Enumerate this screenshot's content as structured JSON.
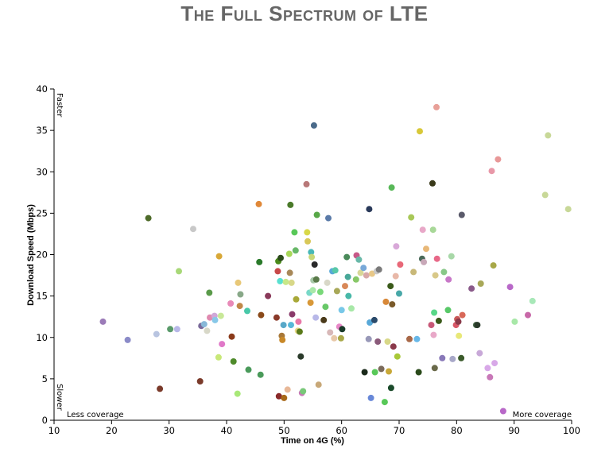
{
  "chart_data": {
    "type": "scatter",
    "title": "The Full Spectrum of LTE",
    "xlabel": "Time on 4G (%)",
    "ylabel": "Download Speed (Mbps)",
    "xlim": [
      10,
      100
    ],
    "ylim": [
      0,
      40
    ],
    "xticks": [
      10,
      20,
      30,
      40,
      50,
      60,
      70,
      80,
      90,
      100
    ],
    "yticks": [
      0,
      5,
      10,
      15,
      20,
      25,
      30,
      35,
      40
    ],
    "grid": false,
    "annotations": {
      "y_high": "Faster",
      "y_low": "Slower",
      "x_low": "Less coverage",
      "x_high": "More coverage"
    },
    "points": [
      {
        "x": 18.5,
        "y": 11.9,
        "color": "#9b7bb8"
      },
      {
        "x": 22.8,
        "y": 9.7,
        "color": "#8b8bc8"
      },
      {
        "x": 26.4,
        "y": 24.4,
        "color": "#4e6b2a"
      },
      {
        "x": 27.8,
        "y": 10.4,
        "color": "#b8c4e0"
      },
      {
        "x": 28.4,
        "y": 3.8,
        "color": "#7a3a2a"
      },
      {
        "x": 30.2,
        "y": 11.0,
        "color": "#5a9a6a"
      },
      {
        "x": 31.4,
        "y": 11.0,
        "color": "#b8b8e8"
      },
      {
        "x": 31.7,
        "y": 18.0,
        "color": "#a8d878"
      },
      {
        "x": 34.2,
        "y": 23.1,
        "color": "#c8c8c8"
      },
      {
        "x": 35.4,
        "y": 4.7,
        "color": "#7a3a2a"
      },
      {
        "x": 35.6,
        "y": 11.4,
        "color": "#7a6a9a"
      },
      {
        "x": 36.1,
        "y": 11.6,
        "color": "#88b8d8"
      },
      {
        "x": 36.6,
        "y": 10.8,
        "color": "#d8d8c8"
      },
      {
        "x": 37.0,
        "y": 15.4,
        "color": "#5a9a4a"
      },
      {
        "x": 37.1,
        "y": 12.4,
        "color": "#e08ab0"
      },
      {
        "x": 37.9,
        "y": 12.6,
        "color": "#d0a8d8"
      },
      {
        "x": 38.0,
        "y": 12.1,
        "color": "#88c8e8"
      },
      {
        "x": 38.6,
        "y": 7.6,
        "color": "#c8e878"
      },
      {
        "x": 38.7,
        "y": 19.8,
        "color": "#d8a838"
      },
      {
        "x": 39.0,
        "y": 12.6,
        "color": "#c8e898"
      },
      {
        "x": 39.2,
        "y": 9.2,
        "color": "#e078c8"
      },
      {
        "x": 40.7,
        "y": 14.1,
        "color": "#e88ab8"
      },
      {
        "x": 40.9,
        "y": 10.1,
        "color": "#8a3a1a"
      },
      {
        "x": 41.2,
        "y": 7.1,
        "color": "#4e8a2a"
      },
      {
        "x": 41.9,
        "y": 3.2,
        "color": "#a8e878"
      },
      {
        "x": 42.0,
        "y": 16.6,
        "color": "#e8c878"
      },
      {
        "x": 42.3,
        "y": 13.8,
        "color": "#c08848"
      },
      {
        "x": 42.4,
        "y": 15.2,
        "color": "#88a888"
      },
      {
        "x": 43.6,
        "y": 13.2,
        "color": "#48c8a8"
      },
      {
        "x": 43.8,
        "y": 6.1,
        "color": "#4a9a5a"
      },
      {
        "x": 45.6,
        "y": 26.1,
        "color": "#e08838"
      },
      {
        "x": 45.7,
        "y": 19.1,
        "color": "#2a7a2a"
      },
      {
        "x": 45.9,
        "y": 5.5,
        "color": "#4a9a5a"
      },
      {
        "x": 46.0,
        "y": 12.7,
        "color": "#8a4a1a"
      },
      {
        "x": 47.2,
        "y": 15.0,
        "color": "#8a3a5a"
      },
      {
        "x": 48.7,
        "y": 12.4,
        "color": "#8a3a2a"
      },
      {
        "x": 48.9,
        "y": 18.0,
        "color": "#c84848"
      },
      {
        "x": 49.0,
        "y": 19.2,
        "color": "#4a8a1a"
      },
      {
        "x": 49.1,
        "y": 2.9,
        "color": "#8a2a2a"
      },
      {
        "x": 49.3,
        "y": 16.8,
        "color": "#58e0d0"
      },
      {
        "x": 49.4,
        "y": 19.6,
        "color": "#2a4a1a"
      },
      {
        "x": 49.6,
        "y": 10.2,
        "color": "#a87838"
      },
      {
        "x": 49.7,
        "y": 9.7,
        "color": "#c88828"
      },
      {
        "x": 49.9,
        "y": 11.5,
        "color": "#58a8c8"
      },
      {
        "x": 50.0,
        "y": 2.7,
        "color": "#a86818"
      },
      {
        "x": 50.3,
        "y": 16.7,
        "color": "#c8e888"
      },
      {
        "x": 50.6,
        "y": 3.7,
        "color": "#e8b898"
      },
      {
        "x": 50.9,
        "y": 20.1,
        "color": "#a8d858"
      },
      {
        "x": 51.0,
        "y": 17.8,
        "color": "#a88858"
      },
      {
        "x": 51.1,
        "y": 26.0,
        "color": "#4a7a2a"
      },
      {
        "x": 51.2,
        "y": 11.5,
        "color": "#58b8d8"
      },
      {
        "x": 51.3,
        "y": 16.6,
        "color": "#d8d888"
      },
      {
        "x": 51.4,
        "y": 12.8,
        "color": "#8a3a6a"
      },
      {
        "x": 51.8,
        "y": 22.7,
        "color": "#58c858"
      },
      {
        "x": 52.0,
        "y": 20.5,
        "color": "#68b868"
      },
      {
        "x": 52.1,
        "y": 14.6,
        "color": "#a8a838"
      },
      {
        "x": 52.4,
        "y": 10.8,
        "color": "#e8d888"
      },
      {
        "x": 52.5,
        "y": 11.9,
        "color": "#e878a8"
      },
      {
        "x": 52.7,
        "y": 10.7,
        "color": "#5a7a1a"
      },
      {
        "x": 52.9,
        "y": 7.7,
        "color": "#2a3a2a"
      },
      {
        "x": 53.1,
        "y": 3.3,
        "color": "#c878b8"
      },
      {
        "x": 53.3,
        "y": 3.5,
        "color": "#78c878"
      },
      {
        "x": 53.9,
        "y": 28.5,
        "color": "#b87878"
      },
      {
        "x": 54.0,
        "y": 22.7,
        "color": "#d8d848"
      },
      {
        "x": 54.1,
        "y": 21.6,
        "color": "#d8c858"
      },
      {
        "x": 54.4,
        "y": 15.4,
        "color": "#78d8c8"
      },
      {
        "x": 54.6,
        "y": 14.2,
        "color": "#d89838"
      },
      {
        "x": 54.7,
        "y": 20.3,
        "color": "#48b8b8"
      },
      {
        "x": 54.8,
        "y": 19.7,
        "color": "#c8d878"
      },
      {
        "x": 55.0,
        "y": 15.7,
        "color": "#a8e8a8"
      },
      {
        "x": 55.1,
        "y": 16.9,
        "color": "#a8c8a8"
      },
      {
        "x": 55.2,
        "y": 35.6,
        "color": "#4a6a8a"
      },
      {
        "x": 55.3,
        "y": 18.8,
        "color": "#2a2a2a"
      },
      {
        "x": 55.5,
        "y": 12.4,
        "color": "#b8b8e8"
      },
      {
        "x": 55.6,
        "y": 17.0,
        "color": "#5a7a4a"
      },
      {
        "x": 55.7,
        "y": 24.8,
        "color": "#58a848"
      },
      {
        "x": 56.0,
        "y": 4.3,
        "color": "#c8a878"
      },
      {
        "x": 56.3,
        "y": 15.5,
        "color": "#78d878"
      },
      {
        "x": 56.9,
        "y": 12.1,
        "color": "#4a3a1a"
      },
      {
        "x": 57.2,
        "y": 13.7,
        "color": "#68c868"
      },
      {
        "x": 57.5,
        "y": 16.6,
        "color": "#d8d8c8"
      },
      {
        "x": 57.7,
        "y": 24.4,
        "color": "#5a7aa8"
      },
      {
        "x": 58.0,
        "y": 10.6,
        "color": "#d8b8b8"
      },
      {
        "x": 58.4,
        "y": 18.0,
        "color": "#58a8d8"
      },
      {
        "x": 58.7,
        "y": 9.9,
        "color": "#e8c8a8"
      },
      {
        "x": 58.9,
        "y": 18.1,
        "color": "#58c8a8"
      },
      {
        "x": 59.2,
        "y": 15.6,
        "color": "#a8a858"
      },
      {
        "x": 59.6,
        "y": 11.3,
        "color": "#e888c8"
      },
      {
        "x": 59.9,
        "y": 9.9,
        "color": "#a8a848"
      },
      {
        "x": 60.0,
        "y": 13.3,
        "color": "#78c8e8"
      },
      {
        "x": 60.1,
        "y": 11.0,
        "color": "#1a3a2a"
      },
      {
        "x": 60.6,
        "y": 16.2,
        "color": "#d88858"
      },
      {
        "x": 60.9,
        "y": 19.7,
        "color": "#4a8a5a"
      },
      {
        "x": 61.1,
        "y": 17.3,
        "color": "#48a898"
      },
      {
        "x": 61.2,
        "y": 15.0,
        "color": "#48b8a8"
      },
      {
        "x": 61.7,
        "y": 13.5,
        "color": "#a8e8a8"
      },
      {
        "x": 62.5,
        "y": 17.0,
        "color": "#88c868"
      },
      {
        "x": 62.6,
        "y": 19.9,
        "color": "#c85888"
      },
      {
        "x": 63.0,
        "y": 19.4,
        "color": "#68b8a8"
      },
      {
        "x": 63.3,
        "y": 17.8,
        "color": "#d8d898"
      },
      {
        "x": 63.8,
        "y": 18.4,
        "color": "#78a8d8"
      },
      {
        "x": 64.0,
        "y": 5.8,
        "color": "#1a2a1a"
      },
      {
        "x": 64.3,
        "y": 17.5,
        "color": "#d8a8a8"
      },
      {
        "x": 64.7,
        "y": 9.8,
        "color": "#9898b8"
      },
      {
        "x": 64.8,
        "y": 25.5,
        "color": "#2a3a5a"
      },
      {
        "x": 64.9,
        "y": 11.8,
        "color": "#58a8d8"
      },
      {
        "x": 65.1,
        "y": 2.7,
        "color": "#6888d8"
      },
      {
        "x": 65.3,
        "y": 17.7,
        "color": "#e8c888"
      },
      {
        "x": 65.7,
        "y": 12.1,
        "color": "#2a4a6a"
      },
      {
        "x": 65.8,
        "y": 5.8,
        "color": "#58c858"
      },
      {
        "x": 66.1,
        "y": 18.0,
        "color": "#c8c8c8"
      },
      {
        "x": 66.3,
        "y": 9.5,
        "color": "#8a5a7a"
      },
      {
        "x": 66.5,
        "y": 18.2,
        "color": "#7a7a7a"
      },
      {
        "x": 66.9,
        "y": 6.2,
        "color": "#7a6a5a"
      },
      {
        "x": 67.5,
        "y": 2.2,
        "color": "#58c858"
      },
      {
        "x": 67.7,
        "y": 14.3,
        "color": "#d88838"
      },
      {
        "x": 68.0,
        "y": 9.5,
        "color": "#d8d888"
      },
      {
        "x": 68.2,
        "y": 5.9,
        "color": "#c8a838"
      },
      {
        "x": 68.5,
        "y": 16.2,
        "color": "#3a5a1a"
      },
      {
        "x": 68.6,
        "y": 3.9,
        "color": "#1a4a2a"
      },
      {
        "x": 68.7,
        "y": 28.1,
        "color": "#58b858"
      },
      {
        "x": 68.8,
        "y": 14.0,
        "color": "#7a5a2a"
      },
      {
        "x": 69.0,
        "y": 8.9,
        "color": "#8a3a4a"
      },
      {
        "x": 69.4,
        "y": 17.4,
        "color": "#e8b8a8"
      },
      {
        "x": 69.5,
        "y": 21.0,
        "color": "#d8a8d8"
      },
      {
        "x": 69.7,
        "y": 7.7,
        "color": "#a8c838"
      },
      {
        "x": 70.0,
        "y": 15.3,
        "color": "#48a8a8"
      },
      {
        "x": 70.2,
        "y": 18.8,
        "color": "#e86878"
      },
      {
        "x": 71.8,
        "y": 9.8,
        "color": "#a86848"
      },
      {
        "x": 72.1,
        "y": 24.5,
        "color": "#a8c858"
      },
      {
        "x": 72.5,
        "y": 17.9,
        "color": "#c8b878"
      },
      {
        "x": 73.1,
        "y": 9.8,
        "color": "#68b8e8"
      },
      {
        "x": 73.4,
        "y": 5.8,
        "color": "#2a4a1a"
      },
      {
        "x": 73.6,
        "y": 34.9,
        "color": "#d8c838"
      },
      {
        "x": 74.0,
        "y": 19.5,
        "color": "#4a6a5a"
      },
      {
        "x": 74.1,
        "y": 23.0,
        "color": "#e8a8c8"
      },
      {
        "x": 74.3,
        "y": 19.1,
        "color": "#c8a8b8"
      },
      {
        "x": 74.7,
        "y": 20.7,
        "color": "#e8b878"
      },
      {
        "x": 75.6,
        "y": 11.5,
        "color": "#c85878"
      },
      {
        "x": 75.8,
        "y": 28.6,
        "color": "#3a3a1a"
      },
      {
        "x": 75.9,
        "y": 23.0,
        "color": "#a8d898"
      },
      {
        "x": 76.0,
        "y": 10.3,
        "color": "#e8a8c8"
      },
      {
        "x": 76.1,
        "y": 13.0,
        "color": "#58d888"
      },
      {
        "x": 76.2,
        "y": 6.3,
        "color": "#6a6a4a"
      },
      {
        "x": 76.3,
        "y": 17.5,
        "color": "#d8c888"
      },
      {
        "x": 76.5,
        "y": 37.8,
        "color": "#e8a098"
      },
      {
        "x": 76.6,
        "y": 19.5,
        "color": "#e86888"
      },
      {
        "x": 76.9,
        "y": 12.0,
        "color": "#3a5a1a"
      },
      {
        "x": 77.5,
        "y": 7.5,
        "color": "#8878b8"
      },
      {
        "x": 77.8,
        "y": 17.9,
        "color": "#88c888"
      },
      {
        "x": 78.5,
        "y": 13.3,
        "color": "#58c868"
      },
      {
        "x": 78.6,
        "y": 17.0,
        "color": "#c878c8"
      },
      {
        "x": 79.1,
        "y": 19.8,
        "color": "#a8d8a8"
      },
      {
        "x": 79.3,
        "y": 7.4,
        "color": "#a8a8c8"
      },
      {
        "x": 79.9,
        "y": 11.5,
        "color": "#d85868"
      },
      {
        "x": 80.1,
        "y": 12.2,
        "color": "#c85858"
      },
      {
        "x": 80.3,
        "y": 11.9,
        "color": "#8a3a4a"
      },
      {
        "x": 80.4,
        "y": 10.2,
        "color": "#e8e878"
      },
      {
        "x": 80.8,
        "y": 7.5,
        "color": "#3a5a2a"
      },
      {
        "x": 80.9,
        "y": 24.8,
        "color": "#5a5a6a"
      },
      {
        "x": 81.0,
        "y": 12.7,
        "color": "#d86858"
      },
      {
        "x": 82.6,
        "y": 15.9,
        "color": "#8a5a8a"
      },
      {
        "x": 83.4,
        "y": 11.5,
        "color": "#4a6a4a"
      },
      {
        "x": 83.6,
        "y": 11.5,
        "color": "#2a3a2a"
      },
      {
        "x": 84.0,
        "y": 8.1,
        "color": "#c8a8d8"
      },
      {
        "x": 84.2,
        "y": 16.5,
        "color": "#a8a858"
      },
      {
        "x": 85.4,
        "y": 6.3,
        "color": "#d8a8e8"
      },
      {
        "x": 85.8,
        "y": 5.2,
        "color": "#c878b8"
      },
      {
        "x": 86.1,
        "y": 30.1,
        "color": "#e898a8"
      },
      {
        "x": 86.4,
        "y": 18.7,
        "color": "#a8a848"
      },
      {
        "x": 86.6,
        "y": 6.9,
        "color": "#d8a8e8"
      },
      {
        "x": 87.2,
        "y": 31.5,
        "color": "#e89898"
      },
      {
        "x": 88.1,
        "y": 1.1,
        "color": "#b868c8"
      },
      {
        "x": 89.3,
        "y": 16.1,
        "color": "#b868c8"
      },
      {
        "x": 90.1,
        "y": 11.9,
        "color": "#a8e8a8"
      },
      {
        "x": 92.4,
        "y": 12.7,
        "color": "#c868a8"
      },
      {
        "x": 93.2,
        "y": 14.4,
        "color": "#a8e8b8"
      },
      {
        "x": 95.4,
        "y": 27.2,
        "color": "#c8d898"
      },
      {
        "x": 95.9,
        "y": 34.4,
        "color": "#c8d898"
      },
      {
        "x": 99.4,
        "y": 25.5,
        "color": "#c8d898"
      }
    ]
  }
}
